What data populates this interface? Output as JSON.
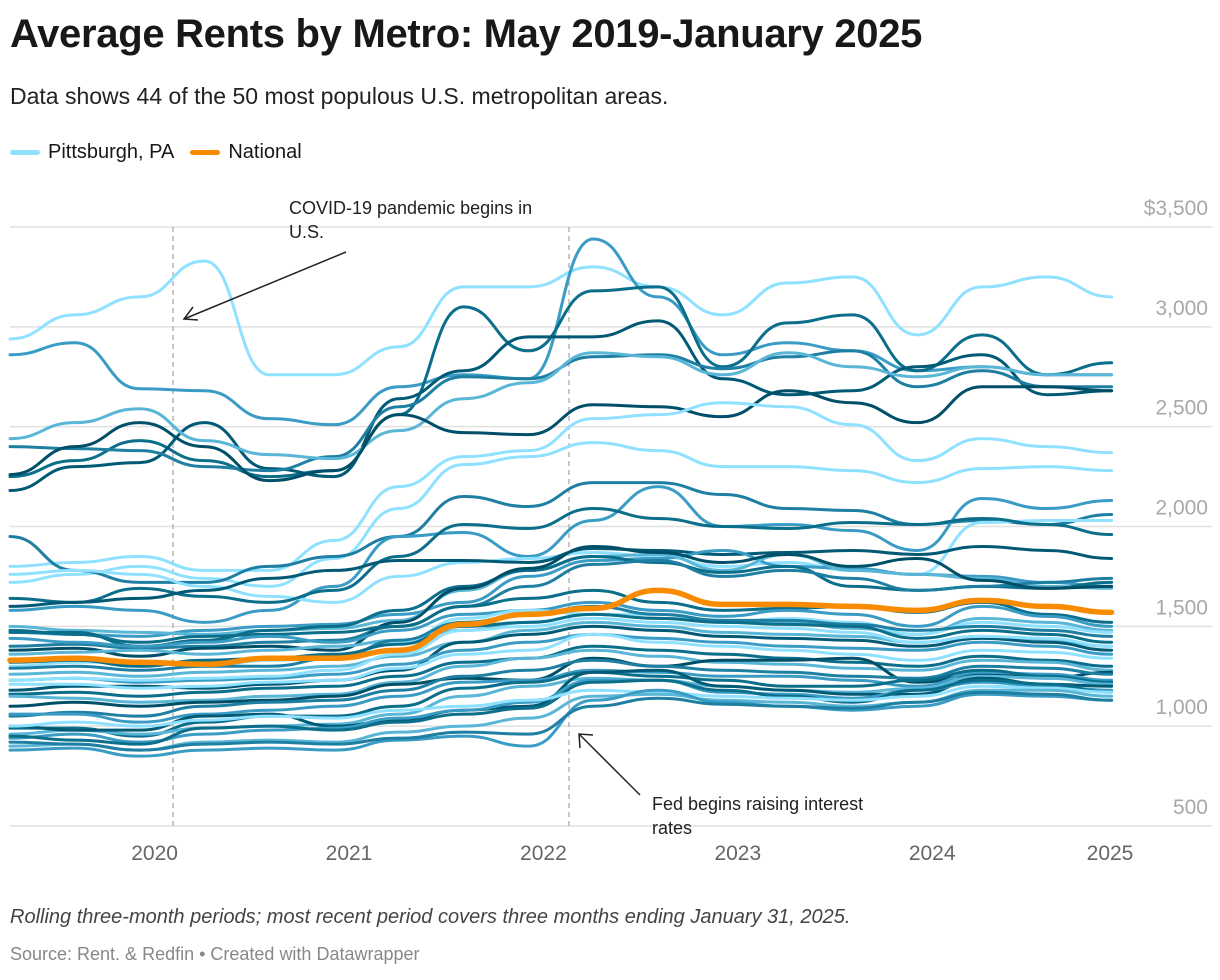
{
  "title": "Average Rents by Metro: May 2019-January 2025",
  "subtitle": "Data shows 44 of the 50 most populous U.S. metropolitan areas.",
  "legend": [
    {
      "label": "Pittsburgh, PA",
      "color": "#8fe1ff"
    },
    {
      "label": "National",
      "color": "#f98b00"
    }
  ],
  "footer": {
    "note": "Rolling three-month periods; most recent period covers three months ending January 31, 2025.",
    "source": "Source: Rent. & Redfin • Created with Datawrapper"
  },
  "chart_data": {
    "type": "line",
    "title": "Average Rents by Metro: May 2019-January 2025",
    "xlabel": "",
    "ylabel": "",
    "ylim": [
      500,
      3500
    ],
    "y_ticks": [
      "$3,500",
      "3,000",
      "2,500",
      "2,000",
      "1,500",
      "1,000",
      "500"
    ],
    "y_tick_values": [
      3500,
      3000,
      2500,
      2000,
      1500,
      1000,
      500
    ],
    "x_ticks": [
      "2020",
      "2021",
      "2022",
      "2023",
      "2024",
      "2025"
    ],
    "x_tick_values": [
      "2020-01",
      "2021-01",
      "2022-01",
      "2023-01",
      "2024-01",
      "2025-01"
    ],
    "grid": true,
    "legend_position": "top-left",
    "x": [
      "2019-05",
      "2019-09",
      "2020-01",
      "2020-05",
      "2020-09",
      "2021-01",
      "2021-05",
      "2021-09",
      "2022-01",
      "2022-05",
      "2022-09",
      "2023-01",
      "2023-05",
      "2023-09",
      "2024-01",
      "2024-05",
      "2024-09",
      "2025-01"
    ],
    "annotations": [
      {
        "text": "COVID-19 pandemic begins in U.S.",
        "date": "2020-03"
      },
      {
        "text": "Fed begins raising interest rates",
        "date": "2022-03"
      }
    ],
    "series": [
      {
        "color": "#8fe1ff",
        "values": [
          2940,
          3060,
          3150,
          3330,
          2760,
          2760,
          2900,
          3200,
          3200,
          3300,
          3200,
          3060,
          3220,
          3250,
          2960,
          3200,
          3250,
          3150
        ]
      },
      {
        "color": "#3a9cc4",
        "values": [
          2860,
          2920,
          2690,
          2680,
          2540,
          2510,
          2700,
          2760,
          2740,
          3440,
          3150,
          2860,
          2920,
          2880,
          2780,
          2800,
          2760,
          2760
        ]
      },
      {
        "color": "#0b6e8a",
        "values": [
          2250,
          2330,
          2430,
          2330,
          2250,
          2280,
          2560,
          3100,
          2880,
          3180,
          3200,
          2800,
          3020,
          3060,
          2780,
          2960,
          2760,
          2820
        ]
      },
      {
        "color": "#005a75",
        "values": [
          2180,
          2300,
          2320,
          2520,
          2290,
          2250,
          2640,
          2780,
          2950,
          2950,
          3030,
          2740,
          2660,
          2680,
          2800,
          2860,
          2660,
          2680
        ]
      },
      {
        "color": "#1e7fa3",
        "values": [
          2400,
          2390,
          2380,
          2300,
          2280,
          2350,
          2600,
          2750,
          2740,
          2850,
          2860,
          2790,
          2850,
          2880,
          2700,
          2780,
          2700,
          2700
        ]
      },
      {
        "color": "#5ab6d6",
        "values": [
          2440,
          2520,
          2590,
          2430,
          2360,
          2340,
          2480,
          2640,
          2720,
          2870,
          2850,
          2760,
          2870,
          2800,
          2750,
          2800,
          2760,
          2760
        ]
      },
      {
        "color": "#004f68",
        "values": [
          2260,
          2400,
          2520,
          2400,
          2230,
          2280,
          2560,
          2470,
          2460,
          2610,
          2600,
          2550,
          2680,
          2620,
          2520,
          2700,
          2700,
          2680
        ]
      },
      {
        "color": "#8fe1ff",
        "values": [
          1800,
          1820,
          1850,
          1780,
          1780,
          1930,
          2200,
          2350,
          2380,
          2540,
          2560,
          2620,
          2600,
          2510,
          2330,
          2440,
          2400,
          2370
        ]
      },
      {
        "color": "#8fe1ff",
        "values": [
          1720,
          1760,
          1800,
          1740,
          1700,
          1840,
          2090,
          2310,
          2350,
          2420,
          2380,
          2300,
          2300,
          2280,
          2220,
          2290,
          2300,
          2280
        ]
      },
      {
        "color": "#1e7fa3",
        "values": [
          1950,
          1780,
          1720,
          1720,
          1800,
          1850,
          1950,
          2150,
          2100,
          2220,
          2220,
          2160,
          2090,
          2080,
          2010,
          2030,
          2010,
          2060
        ]
      },
      {
        "color": "#3a9cc4",
        "values": [
          1580,
          1600,
          1580,
          1520,
          1580,
          1700,
          1950,
          1970,
          1850,
          2030,
          2200,
          2000,
          2010,
          1980,
          1880,
          2140,
          2090,
          2130
        ]
      },
      {
        "color": "#8fe1ff",
        "values": [
          1760,
          1780,
          1760,
          1700,
          1650,
          1620,
          1750,
          1820,
          1840,
          1870,
          1850,
          1800,
          1820,
          1780,
          1760,
          2020,
          2030,
          2030
        ]
      },
      {
        "color": "#0b6e8a",
        "values": [
          1640,
          1620,
          1690,
          1650,
          1620,
          1680,
          1850,
          2010,
          1990,
          2090,
          2040,
          2000,
          1990,
          2020,
          2010,
          2040,
          2010,
          1960
        ]
      },
      {
        "color": "#005a75",
        "values": [
          1600,
          1620,
          1640,
          1680,
          1740,
          1780,
          1830,
          1830,
          1820,
          1890,
          1880,
          1860,
          1870,
          1880,
          1860,
          1900,
          1880,
          1840
        ]
      },
      {
        "color": "#3a9cc4",
        "values": [
          1470,
          1460,
          1450,
          1480,
          1500,
          1510,
          1560,
          1620,
          1750,
          1830,
          1840,
          1880,
          1800,
          1790,
          1760,
          1750,
          1720,
          1700
        ]
      },
      {
        "color": "#5ab6d6",
        "values": [
          1500,
          1480,
          1470,
          1460,
          1480,
          1490,
          1530,
          1680,
          1780,
          1850,
          1860,
          1780,
          1860,
          1780,
          1760,
          1740,
          1700,
          1690
        ]
      },
      {
        "color": "#0b6e8a",
        "values": [
          1470,
          1470,
          1400,
          1430,
          1480,
          1500,
          1580,
          1700,
          1780,
          1850,
          1820,
          1770,
          1800,
          1700,
          1680,
          1700,
          1690,
          1720
        ]
      },
      {
        "color": "#1e7fa3",
        "values": [
          1400,
          1410,
          1390,
          1400,
          1420,
          1430,
          1500,
          1600,
          1700,
          1810,
          1830,
          1750,
          1780,
          1740,
          1680,
          1700,
          1720,
          1740
        ]
      },
      {
        "color": "#004f68",
        "values": [
          1380,
          1390,
          1350,
          1390,
          1400,
          1380,
          1520,
          1690,
          1790,
          1900,
          1870,
          1820,
          1860,
          1800,
          1840,
          1730,
          1690,
          1700
        ]
      },
      {
        "color": "#0b6e8a",
        "values": [
          1480,
          1460,
          1420,
          1450,
          1460,
          1470,
          1500,
          1600,
          1640,
          1680,
          1620,
          1580,
          1590,
          1600,
          1570,
          1620,
          1560,
          1520
        ]
      },
      {
        "color": "#3a9cc4",
        "values": [
          1440,
          1420,
          1400,
          1420,
          1450,
          1420,
          1480,
          1560,
          1580,
          1620,
          1580,
          1550,
          1580,
          1560,
          1500,
          1600,
          1550,
          1500
        ]
      },
      {
        "color": "#5ab6d6",
        "values": [
          1360,
          1370,
          1380,
          1360,
          1380,
          1400,
          1430,
          1480,
          1520,
          1560,
          1540,
          1530,
          1520,
          1490,
          1460,
          1540,
          1520,
          1480
        ]
      },
      {
        "color": "#8fe1ff",
        "values": [
          1300,
          1320,
          1320,
          1300,
          1330,
          1340,
          1420,
          1540,
          1580,
          1560,
          1560,
          1520,
          1540,
          1520,
          1460,
          1520,
          1500,
          1470
        ]
      },
      {
        "color": "#1e7fa3",
        "values": [
          1290,
          1300,
          1280,
          1300,
          1300,
          1340,
          1430,
          1520,
          1560,
          1600,
          1560,
          1530,
          1530,
          1510,
          1480,
          1500,
          1480,
          1450
        ]
      },
      {
        "color": "#0b6e8a",
        "values": [
          1320,
          1330,
          1300,
          1330,
          1340,
          1360,
          1410,
          1500,
          1520,
          1560,
          1540,
          1520,
          1510,
          1500,
          1440,
          1480,
          1460,
          1420
        ]
      },
      {
        "color": "#5ab6d6",
        "values": [
          1260,
          1270,
          1250,
          1270,
          1280,
          1300,
          1350,
          1420,
          1480,
          1520,
          1500,
          1470,
          1460,
          1450,
          1420,
          1450,
          1430,
          1400
        ]
      },
      {
        "color": "#005a75",
        "values": [
          1180,
          1200,
          1200,
          1190,
          1210,
          1230,
          1280,
          1420,
          1460,
          1500,
          1480,
          1450,
          1440,
          1430,
          1400,
          1440,
          1420,
          1380
        ]
      },
      {
        "color": "#3a9cc4",
        "values": [
          1230,
          1240,
          1220,
          1230,
          1240,
          1260,
          1310,
          1380,
          1420,
          1460,
          1440,
          1420,
          1400,
          1390,
          1380,
          1420,
          1400,
          1360
        ]
      },
      {
        "color": "#8fe1ff",
        "values": [
          1210,
          1210,
          1190,
          1200,
          1220,
          1230,
          1290,
          1360,
          1380,
          1460,
          1420,
          1400,
          1380,
          1360,
          1330,
          1380,
          1370,
          1340
        ]
      },
      {
        "color": "#0b6e8a",
        "values": [
          1160,
          1170,
          1150,
          1170,
          1190,
          1200,
          1250,
          1320,
          1340,
          1400,
          1380,
          1360,
          1340,
          1320,
          1300,
          1350,
          1330,
          1300
        ]
      },
      {
        "color": "#5ab6d6",
        "values": [
          1150,
          1140,
          1120,
          1130,
          1150,
          1160,
          1220,
          1300,
          1340,
          1380,
          1350,
          1320,
          1310,
          1290,
          1280,
          1330,
          1320,
          1280
        ]
      },
      {
        "color": "#004f68",
        "values": [
          1100,
          1120,
          1100,
          1120,
          1130,
          1150,
          1210,
          1240,
          1230,
          1340,
          1300,
          1330,
          1330,
          1340,
          1220,
          1260,
          1240,
          1270
        ]
      },
      {
        "color": "#1e7fa3",
        "values": [
          1050,
          1070,
          1050,
          1100,
          1120,
          1130,
          1180,
          1250,
          1280,
          1330,
          1300,
          1280,
          1270,
          1250,
          1240,
          1300,
          1290,
          1260
        ]
      },
      {
        "color": "#3a9cc4",
        "values": [
          1060,
          1060,
          1020,
          1060,
          1080,
          1100,
          1150,
          1220,
          1230,
          1280,
          1270,
          1250,
          1250,
          1230,
          1200,
          1270,
          1260,
          1230
        ]
      },
      {
        "color": "#0b6e8a",
        "values": [
          990,
          990,
          950,
          1020,
          1050,
          1050,
          1100,
          1190,
          1220,
          1270,
          1250,
          1230,
          1200,
          1200,
          1230,
          1280,
          1250,
          1220
        ]
      },
      {
        "color": "#5ab6d6",
        "values": [
          960,
          980,
          960,
          990,
          1000,
          1010,
          1060,
          1150,
          1200,
          1240,
          1230,
          1200,
          1180,
          1170,
          1190,
          1250,
          1240,
          1210
        ]
      },
      {
        "color": "#005a75",
        "values": [
          1000,
          980,
          980,
          1050,
          1060,
          1000,
          1030,
          1080,
          1100,
          1270,
          1280,
          1200,
          1180,
          1160,
          1160,
          1240,
          1210,
          1200
        ]
      },
      {
        "color": "#3a9cc4",
        "values": [
          940,
          960,
          920,
          960,
          980,
          990,
          1040,
          1080,
          1120,
          1230,
          1230,
          1170,
          1160,
          1140,
          1180,
          1220,
          1200,
          1180
        ]
      },
      {
        "color": "#0b6e8a",
        "values": [
          950,
          930,
          910,
          990,
          1000,
          980,
          1020,
          1060,
          1090,
          1220,
          1230,
          1180,
          1150,
          1120,
          1180,
          1230,
          1210,
          1170
        ]
      },
      {
        "name": "Pittsburgh, PA",
        "color": "#8fe1ff",
        "values": [
          1000,
          1020,
          1000,
          1030,
          1050,
          1040,
          1080,
          1100,
          1130,
          1180,
          1170,
          1150,
          1140,
          1130,
          1150,
          1200,
          1190,
          1170
        ]
      },
      {
        "color": "#5ab6d6",
        "values": [
          900,
          910,
          880,
          920,
          930,
          920,
          970,
          1000,
          1040,
          1150,
          1160,
          1130,
          1120,
          1100,
          1120,
          1180,
          1180,
          1150
        ]
      },
      {
        "color": "#3a9cc4",
        "values": [
          880,
          890,
          850,
          880,
          890,
          880,
          930,
          950,
          900,
          1130,
          1180,
          1120,
          1100,
          1080,
          1100,
          1160,
          1150,
          1130
        ]
      },
      {
        "color": "#1e7fa3",
        "values": [
          920,
          910,
          880,
          910,
          920,
          910,
          940,
          970,
          960,
          1100,
          1140,
          1110,
          1100,
          1090,
          1120,
          1170,
          1160,
          1130
        ]
      },
      {
        "color": "#8fe1ff",
        "values": [
          1230,
          1240,
          1230,
          1240,
          1250,
          1280,
          1360,
          1480,
          1500,
          1540,
          1520,
          1500,
          1490,
          1470,
          1420,
          1450,
          1440,
          1400
        ]
      },
      {
        "name": "National",
        "color": "#f98b00",
        "values": [
          1330,
          1340,
          1320,
          1310,
          1340,
          1340,
          1380,
          1510,
          1560,
          1590,
          1680,
          1610,
          1610,
          1600,
          1580,
          1630,
          1600,
          1570
        ]
      }
    ]
  }
}
